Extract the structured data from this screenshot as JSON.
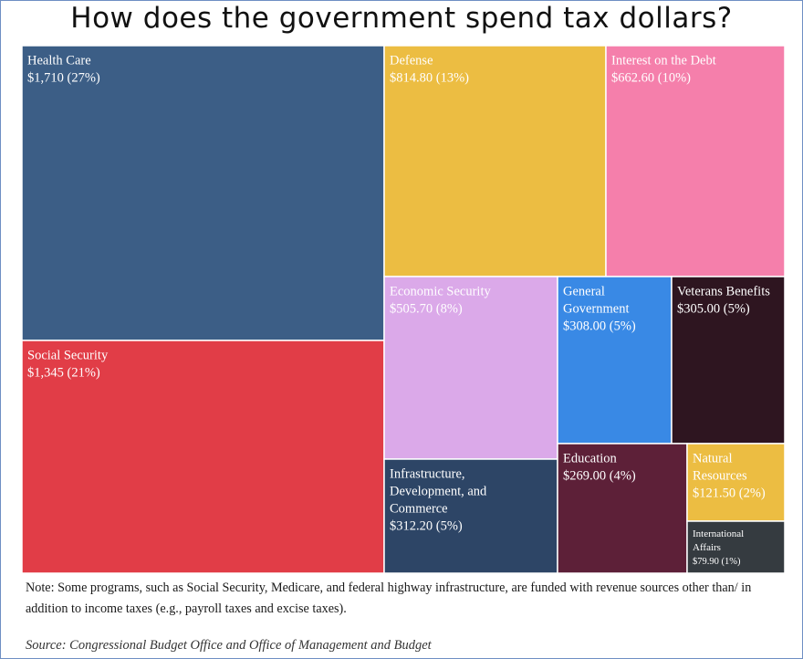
{
  "title": "How does the government spend tax dollars?",
  "note": "Note: Some programs, such as Social Security, Medicare, and federal highway infrastructure, are funded with revenue sources other than/ in addition to income taxes (e.g., payroll taxes and excise taxes).",
  "source": "Source: Congressional Budget Office and Office of Management and Budget",
  "chart_data": {
    "type": "treemap",
    "title": "How does the government spend tax dollars?",
    "items": [
      {
        "name": "Health Care",
        "value": 1710,
        "value_label": "$1,710 (27%)",
        "percent": 27,
        "color": "#3c5e86"
      },
      {
        "name": "Social Security",
        "value": 1345,
        "value_label": "$1,345 (21%)",
        "percent": 21,
        "color": "#e13d47"
      },
      {
        "name": "Defense",
        "value": 814.8,
        "value_label": "$814.80 (13%)",
        "percent": 13,
        "color": "#ecbd42"
      },
      {
        "name": "Interest on the Debt",
        "value": 662.6,
        "value_label": "$662.60 (10%)",
        "percent": 10,
        "color": "#f57fab"
      },
      {
        "name": "Economic Security",
        "value": 505.7,
        "value_label": "$505.70 (8%)",
        "percent": 8,
        "color": "#dba9e9"
      },
      {
        "name": "Infrastructure, Development, and Commerce",
        "value": 312.2,
        "value_label": "$312.20 (5%)",
        "percent": 5,
        "color": "#2d4566"
      },
      {
        "name": "General Government",
        "value": 308.0,
        "value_label": "$308.00 (5%)",
        "percent": 5,
        "color": "#3989e5"
      },
      {
        "name": "Veterans Benefits",
        "value": 305.0,
        "value_label": "$305.00 (5%)",
        "percent": 5,
        "color": "#2e1520"
      },
      {
        "name": "Education",
        "value": 269.0,
        "value_label": "$269.00 (4%)",
        "percent": 4,
        "color": "#5d2038"
      },
      {
        "name": "Natural Resources",
        "value": 121.5,
        "value_label": "$121.50 (2%)",
        "percent": 2,
        "color": "#ecbd42"
      },
      {
        "name": "International Affairs",
        "value": 79.9,
        "value_label": "$79.90 (1%)",
        "percent": 1,
        "color": "#353b40"
      }
    ]
  }
}
